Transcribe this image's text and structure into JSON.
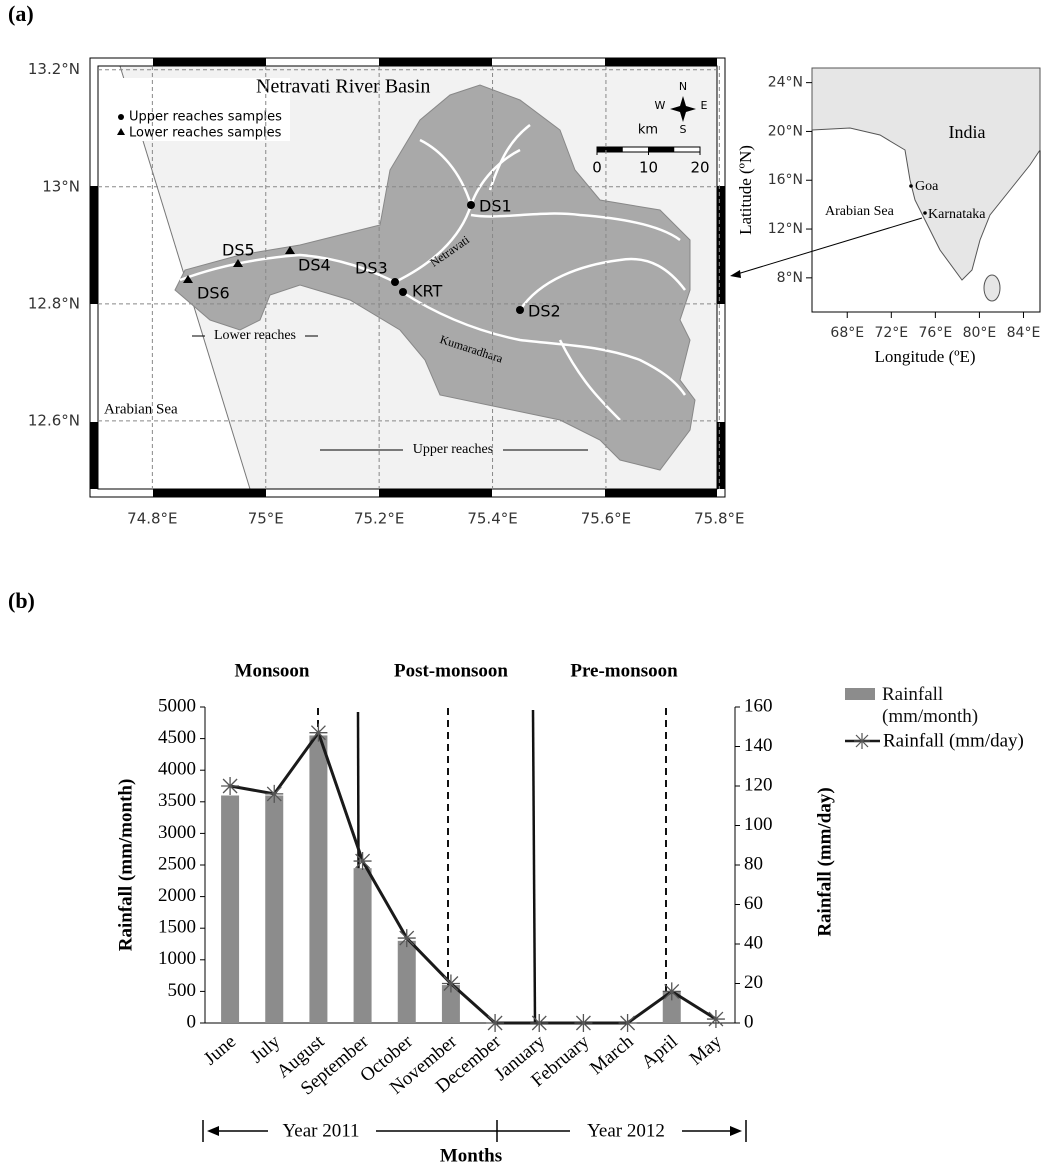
{
  "panel_labels": [
    "(a)",
    "(b)"
  ],
  "map": {
    "title": "Netravati River Basin",
    "legend": [
      "Upper reaches samples",
      "Lower reaches samples"
    ],
    "compass": [
      "N",
      "S",
      "W",
      "E"
    ],
    "scale_bar": {
      "unit": "km",
      "ticks": [
        0,
        10,
        20
      ]
    },
    "sites": [
      "DS1",
      "DS2",
      "DS3",
      "DS4",
      "DS5",
      "DS6",
      "KRT"
    ],
    "rivers": [
      "Netravati",
      "Kumaradhara"
    ],
    "regions": [
      "Lower reaches",
      "Upper reaches",
      "Arabian Sea"
    ],
    "xlim": [
      74.69,
      75.81
    ],
    "xticks": [
      {
        "value": 74.8,
        "label": "74.8°E"
      },
      {
        "value": 75,
        "label": "75°E"
      },
      {
        "value": 75.2,
        "label": "75.2°E"
      },
      {
        "value": 75.4,
        "label": "75.4°E"
      },
      {
        "value": 75.6,
        "label": "75.6°E"
      },
      {
        "value": 75.8,
        "label": "75.8°E"
      }
    ],
    "ylim": [
      12.47,
      13.22
    ],
    "yticks": [
      {
        "value": 13.2,
        "label": "13.2°N"
      },
      {
        "value": 13,
        "label": "13°N"
      },
      {
        "value": 12.8,
        "label": "12.8°N"
      },
      {
        "value": 12.6,
        "label": "12.6°N"
      }
    ]
  },
  "inset": {
    "xlabel": "Longitude (ºE)",
    "ylabel": "Latitude (ºN)",
    "labels": [
      "India",
      "Goa",
      "Karnataka",
      "Arabian Sea"
    ],
    "xlim": [
      64.8,
      85.5
    ],
    "xticks": [
      {
        "value": 68,
        "label": "68°E"
      },
      {
        "value": 72,
        "label": "72°E"
      },
      {
        "value": 76,
        "label": "76°E"
      },
      {
        "value": 80,
        "label": "80°E"
      },
      {
        "value": 84,
        "label": "84°E"
      }
    ],
    "ylim": [
      5.2,
      25.2
    ],
    "yticks": [
      {
        "value": 24,
        "label": "24°N"
      },
      {
        "value": 20,
        "label": "20°N"
      },
      {
        "value": 16,
        "label": "16°N"
      },
      {
        "value": 12,
        "label": "12°N"
      },
      {
        "value": 8,
        "label": "8°N"
      }
    ]
  },
  "chart_data": {
    "type": "bar",
    "section_labels": [
      "Monsoon",
      "Post-monsoon",
      "Pre-monsoon"
    ],
    "xlabel": "Months",
    "ylabel": "Rainfall (mm/month)",
    "y2label": "Rainfall (mm/day)",
    "periods": [
      "Year 2011",
      "Year 2012"
    ],
    "categories": [
      "June",
      "July",
      "August",
      "September",
      "October",
      "November",
      "December",
      "January",
      "February",
      "March",
      "April",
      "May"
    ],
    "series": [
      {
        "name": "Rainfall (mm/month)",
        "type": "bar",
        "color": "#8c8c8c",
        "values": [
          3600,
          3600,
          4550,
          2450,
          1300,
          600,
          0,
          0,
          0,
          0,
          500,
          0
        ]
      },
      {
        "name": "Rainfall (mm/day)",
        "type": "line",
        "axis": "y2",
        "color": "#1a1a1a",
        "values": [
          120,
          116,
          147,
          82,
          43,
          20,
          0,
          0,
          0,
          0,
          16,
          2
        ]
      }
    ],
    "ylim": [
      0,
      5000
    ],
    "yticks": [
      0,
      500,
      1000,
      1500,
      2000,
      2500,
      3000,
      3500,
      4000,
      4500,
      5000
    ],
    "y2lim": [
      0,
      160
    ],
    "y2ticks": [
      0,
      20,
      40,
      60,
      80,
      100,
      120,
      140,
      160
    ]
  }
}
